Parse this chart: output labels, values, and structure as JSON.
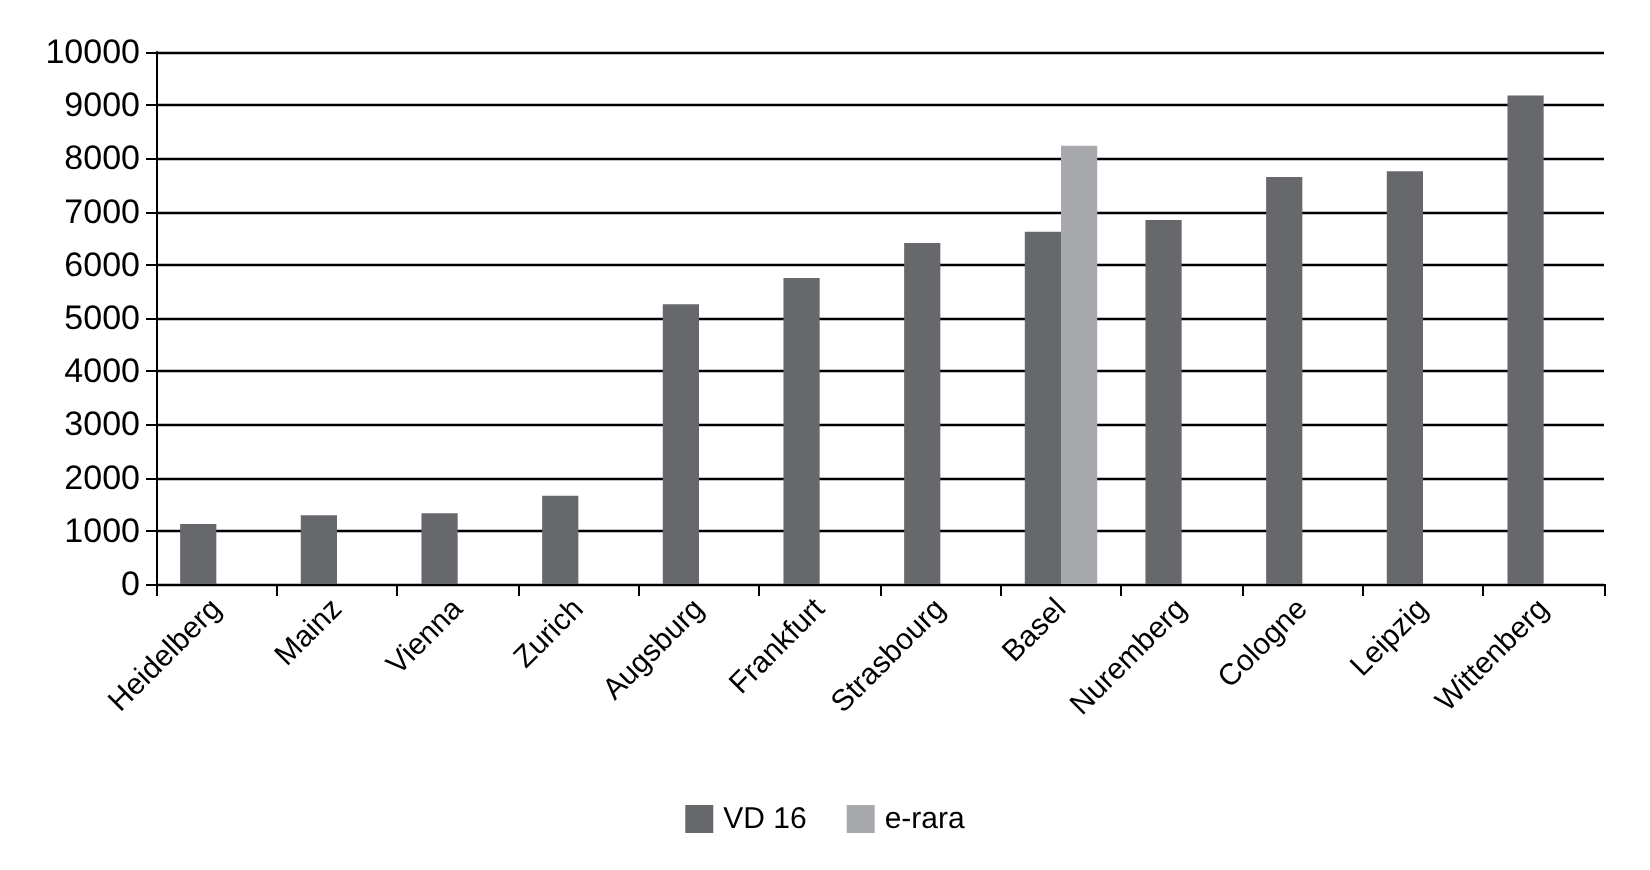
{
  "chart_data": {
    "type": "bar",
    "categories": [
      "Heidelberg",
      "Mainz",
      "Vienna",
      "Zurich",
      "Augsburg",
      "Frankfurt",
      "Strasbourg",
      "Basel",
      "Nuremberg",
      "Cologne",
      "Leipzig",
      "Wittenberg"
    ],
    "series": [
      {
        "name": "VD 16",
        "color": "#67686b",
        "values": [
          1130,
          1290,
          1330,
          1660,
          5260,
          5750,
          6410,
          6620,
          6840,
          7650,
          7760,
          9180
        ]
      },
      {
        "name": "e-rara",
        "color": "#a8a9ac",
        "values": [
          null,
          null,
          null,
          null,
          null,
          null,
          null,
          8240,
          null,
          null,
          null,
          null
        ]
      }
    ],
    "ylim": [
      0,
      10000
    ],
    "yticks": [
      0,
      1000,
      2000,
      3000,
      4000,
      5000,
      6000,
      7000,
      8000,
      9000,
      10000
    ],
    "grid": "y",
    "legend": "bottom"
  }
}
